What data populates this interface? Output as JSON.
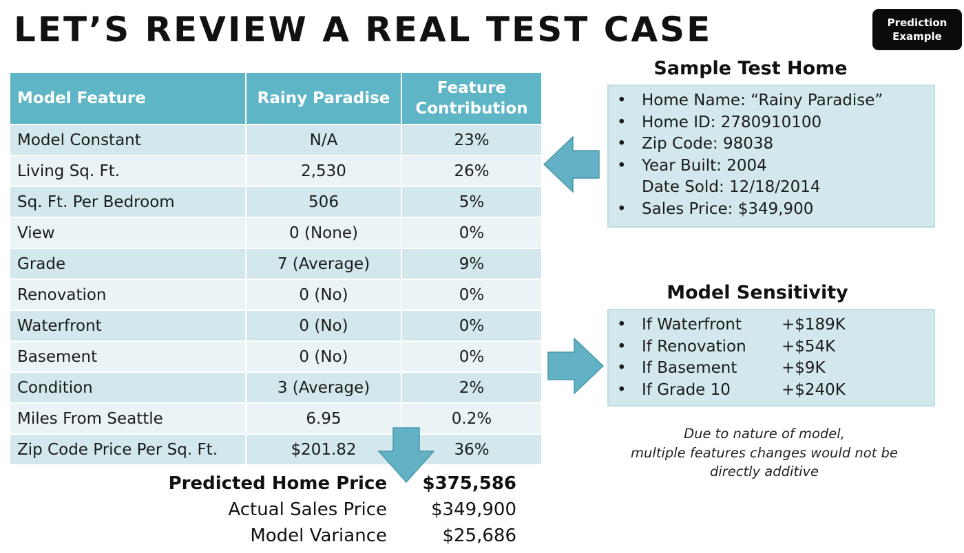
{
  "title": "LET’S REVIEW A REAL TEST CASE",
  "badge": {
    "line1": "Prediction",
    "line2": "Example"
  },
  "table": {
    "headers": [
      "Model Feature",
      "Rainy Paradise",
      "Feature Contribution"
    ],
    "rows": [
      [
        "Model Constant",
        "N/A",
        "23%"
      ],
      [
        "Living Sq. Ft.",
        "2,530",
        "26%"
      ],
      [
        "Sq. Ft. Per Bedroom",
        "506",
        "5%"
      ],
      [
        "View",
        "0 (None)",
        "0%"
      ],
      [
        "Grade",
        "7 (Average)",
        "9%"
      ],
      [
        "Renovation",
        "0 (No)",
        "0%"
      ],
      [
        "Waterfront",
        "0 (No)",
        "0%"
      ],
      [
        "Basement",
        "0 (No)",
        "0%"
      ],
      [
        "Condition",
        "3 (Average)",
        "2%"
      ],
      [
        "Miles From Seattle",
        "6.95",
        "0.2%"
      ],
      [
        "Zip Code Price Per Sq. Ft.",
        "$201.82",
        "36%"
      ]
    ]
  },
  "summary": [
    {
      "label": "Predicted Home Price",
      "value": "$375,586"
    },
    {
      "label": "Actual Sales Price",
      "value": "$349,900"
    },
    {
      "label": "Model Variance",
      "value": "$25,686"
    }
  ],
  "sample": {
    "heading": "Sample Test Home",
    "items": [
      {
        "bullet": "•",
        "text": "Home Name: “Rainy Paradise”"
      },
      {
        "bullet": "•",
        "text": "Home ID: 2780910100"
      },
      {
        "bullet": "•",
        "text": "Zip Code: 98038"
      },
      {
        "bullet": "•",
        "text": "Year Built: 2004"
      },
      {
        "bullet": "",
        "text": "Date Sold: 12/18/2014"
      },
      {
        "bullet": "•",
        "text": "Sales Price: $349,900"
      }
    ]
  },
  "sensitivity": {
    "heading": "Model Sensitivity",
    "items": [
      {
        "label": "If Waterfront",
        "value": "+$189K"
      },
      {
        "label": "If Renovation",
        "value": "+$54K"
      },
      {
        "label": "If Basement",
        "value": "+$9K"
      },
      {
        "label": "If Grade 10",
        "value": "+$240K"
      }
    ],
    "bullet": "•"
  },
  "note": {
    "line1": "Due to nature of model,",
    "line2": "multiple features changes would not be",
    "line3": "directly additive"
  },
  "colors": {
    "header_teal": "#5eb5c6",
    "row_dark": "#d3e8ec",
    "row_light": "#eaf4f6",
    "arrow_fill": "#62b1c4",
    "badge_bg": "#0b0b0b"
  },
  "icons": [
    "left-arrow-icon",
    "right-arrow-icon",
    "down-arrow-icon"
  ]
}
